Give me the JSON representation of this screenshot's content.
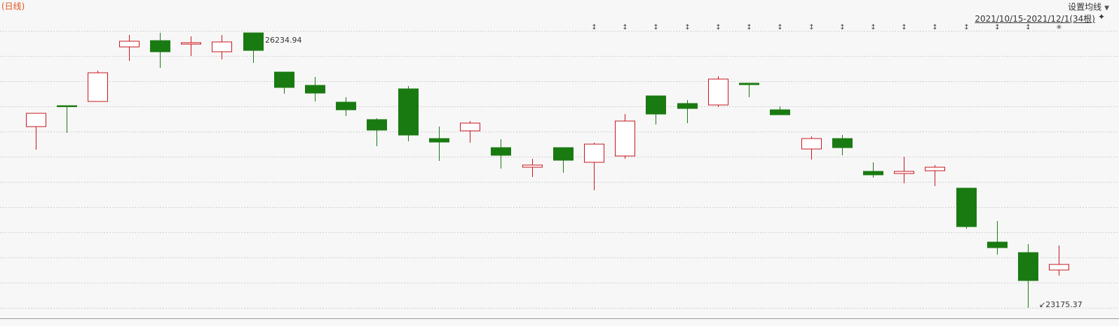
{
  "header": {
    "period_label": "(日线)",
    "ma_settings_label": "设置均线",
    "range_label": "2021/10/15-2021/12/1(34根)"
  },
  "colors": {
    "up": "#c8161d",
    "down": "#1a7a12",
    "grid": "#d0d0d0",
    "title": "#e0541c"
  },
  "chart_data": {
    "type": "candlestick",
    "title": "",
    "xlabel": "",
    "ylabel": "",
    "grid": true,
    "ylim": [
      22973,
      26601
    ],
    "annotations": {
      "max_label": "26234.94",
      "min_label": "23175.37"
    },
    "candles": [
      {
        "o": 25192,
        "c": 25340,
        "h": 25340,
        "l": 24935
      },
      {
        "o": 25425,
        "c": 25418,
        "h": 25425,
        "l": 25122
      },
      {
        "o": 25472,
        "c": 25791,
        "h": 25815,
        "l": 25472
      },
      {
        "o": 26079,
        "c": 26142,
        "h": 26212,
        "l": 25924
      },
      {
        "o": 26149,
        "c": 26025,
        "h": 26235,
        "l": 25846
      },
      {
        "o": 26110,
        "c": 26126,
        "h": 26196,
        "l": 25978
      },
      {
        "o": 26025,
        "c": 26134,
        "h": 26212,
        "l": 25939
      },
      {
        "o": 26235,
        "c": 26040,
        "h": 26235,
        "l": 25900
      },
      {
        "o": 25799,
        "c": 25628,
        "h": 25799,
        "l": 25558
      },
      {
        "o": 25651,
        "c": 25565,
        "h": 25745,
        "l": 25472
      },
      {
        "o": 25464,
        "c": 25379,
        "h": 25519,
        "l": 25309
      },
      {
        "o": 25270,
        "c": 25153,
        "h": 25285,
        "l": 24974
      },
      {
        "o": 25612,
        "c": 25098,
        "h": 25643,
        "l": 25028
      },
      {
        "o": 25059,
        "c": 25020,
        "h": 25192,
        "l": 24810
      },
      {
        "o": 25145,
        "c": 25231,
        "h": 25254,
        "l": 25013
      },
      {
        "o": 24958,
        "c": 24873,
        "h": 25052,
        "l": 24725
      },
      {
        "o": 24740,
        "c": 24764,
        "h": 24834,
        "l": 24631
      },
      {
        "o": 24958,
        "c": 24818,
        "h": 24958,
        "l": 24678
      },
      {
        "o": 24795,
        "c": 24997,
        "h": 25013,
        "l": 24483
      },
      {
        "o": 24865,
        "c": 25254,
        "h": 25332,
        "l": 24834
      },
      {
        "o": 25534,
        "c": 25332,
        "h": 25534,
        "l": 25215
      },
      {
        "o": 25449,
        "c": 25394,
        "h": 25488,
        "l": 25231
      },
      {
        "o": 25433,
        "c": 25721,
        "h": 25752,
        "l": 25410
      },
      {
        "o": 25675,
        "c": 25659,
        "h": 25675,
        "l": 25519
      },
      {
        "o": 25379,
        "c": 25324,
        "h": 25418,
        "l": 25324
      },
      {
        "o": 24943,
        "c": 25059,
        "h": 25083,
        "l": 24826
      },
      {
        "o": 25059,
        "c": 24958,
        "h": 25098,
        "l": 24873
      },
      {
        "o": 24694,
        "c": 24655,
        "h": 24795,
        "l": 24624
      },
      {
        "o": 24670,
        "c": 24694,
        "h": 24857,
        "l": 24561
      },
      {
        "o": 24701,
        "c": 24740,
        "h": 24764,
        "l": 24530
      },
      {
        "o": 24507,
        "c": 24079,
        "h": 24507,
        "l": 24055
      },
      {
        "o": 23907,
        "c": 23845,
        "h": 24141,
        "l": 23767
      },
      {
        "o": 23790,
        "c": 23479,
        "h": 23884,
        "l": 23175
      },
      {
        "o": 23596,
        "c": 23658,
        "h": 23868,
        "l": 23534
      }
    ]
  }
}
